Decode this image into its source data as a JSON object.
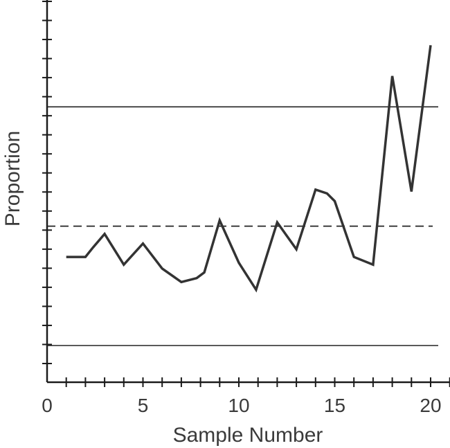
{
  "chart_data": {
    "type": "line",
    "title": "",
    "xlabel": "Sample Number",
    "ylabel": "Proportion",
    "x_ticks": [
      0,
      5,
      10,
      15,
      20
    ],
    "xlim": [
      0,
      21
    ],
    "series": [
      {
        "x": [
          1,
          2,
          2.4,
          3,
          4,
          5,
          6,
          7,
          7.8,
          8.2,
          9,
          10,
          10.9,
          12,
          13,
          14,
          14.6,
          15,
          16,
          17,
          18,
          19,
          20
        ],
        "y": [
          4.6,
          4.6,
          5.1,
          5.8,
          4.2,
          5.3,
          4.0,
          3.3,
          3.5,
          3.8,
          6.5,
          4.3,
          2.9,
          6.4,
          5.0,
          8.1,
          7.9,
          7.5,
          4.6,
          4.2,
          14.0,
          8.0,
          15.6
        ]
      }
    ],
    "reference_lines": [
      {
        "kind": "upper-control-limit",
        "style": "solid",
        "y": 12.4
      },
      {
        "kind": "center-line",
        "style": "dashed",
        "y": 6.2
      },
      {
        "kind": "lower-control-limit",
        "style": "solid",
        "y": 0
      }
    ],
    "y_axis_tick_count": 20,
    "grid": false,
    "colors": {
      "line": "#333333",
      "axis": "#1a1a1a",
      "text": "#3a3a3a"
    }
  }
}
